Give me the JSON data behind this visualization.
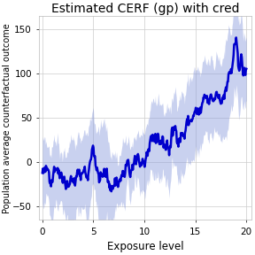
{
  "title": "Estimated CERF (gp) with cred",
  "xlabel": "Exposure level",
  "ylabel": "Population average counterfactual outcome",
  "xlim": [
    -0.3,
    20.5
  ],
  "ylim": [
    -65,
    165
  ],
  "yticks": [
    -50,
    0,
    50,
    100,
    150
  ],
  "xticks": [
    0,
    5,
    10,
    15,
    20
  ],
  "line_color": "#0000cc",
  "band_color": "#8899dd",
  "band_alpha": 0.45,
  "line_width": 1.8,
  "background_color": "#ffffff",
  "grid_color": "#cccccc",
  "title_fontsize": 10,
  "label_fontsize": 8.5,
  "ylabel_fontsize": 7
}
